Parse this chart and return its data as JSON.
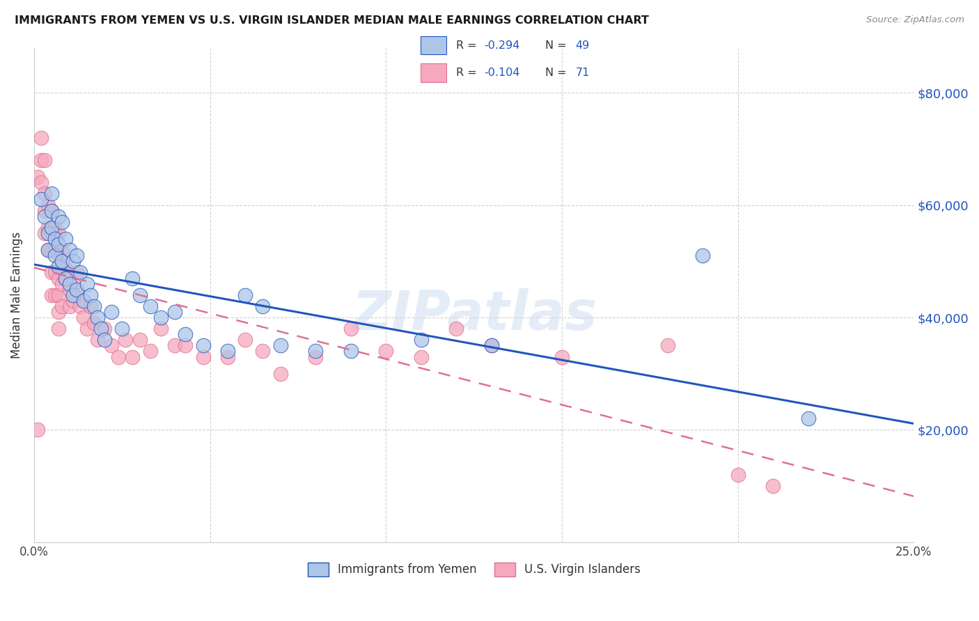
{
  "title": "IMMIGRANTS FROM YEMEN VS U.S. VIRGIN ISLANDER MEDIAN MALE EARNINGS CORRELATION CHART",
  "source": "Source: ZipAtlas.com",
  "ylabel": "Median Male Earnings",
  "xlim": [
    0.0,
    0.25
  ],
  "ylim": [
    0,
    88000
  ],
  "yticks": [
    0,
    20000,
    40000,
    60000,
    80000
  ],
  "ytick_labels": [
    "",
    "$20,000",
    "$40,000",
    "$60,000",
    "$80,000"
  ],
  "xticks": [
    0.0,
    0.05,
    0.1,
    0.15,
    0.2,
    0.25
  ],
  "xtick_labels": [
    "0.0%",
    "",
    "",
    "",
    "",
    "25.0%"
  ],
  "legend_R1": "-0.294",
  "legend_N1": "49",
  "legend_R2": "-0.104",
  "legend_N2": "71",
  "series1_color": "#adc6e8",
  "series2_color": "#f5a8be",
  "trend1_color": "#2255bb",
  "trend2_color": "#e07090",
  "watermark": "ZIPatlas",
  "blue_x": [
    0.002,
    0.003,
    0.004,
    0.004,
    0.005,
    0.005,
    0.005,
    0.006,
    0.006,
    0.007,
    0.007,
    0.007,
    0.008,
    0.008,
    0.009,
    0.009,
    0.01,
    0.01,
    0.011,
    0.011,
    0.012,
    0.012,
    0.013,
    0.014,
    0.015,
    0.016,
    0.017,
    0.018,
    0.019,
    0.02,
    0.022,
    0.025,
    0.028,
    0.03,
    0.033,
    0.036,
    0.04,
    0.043,
    0.048,
    0.055,
    0.06,
    0.065,
    0.07,
    0.08,
    0.09,
    0.11,
    0.13,
    0.19,
    0.22
  ],
  "blue_y": [
    61000,
    58000,
    55000,
    52000,
    62000,
    59000,
    56000,
    54000,
    51000,
    58000,
    53000,
    49000,
    57000,
    50000,
    54000,
    47000,
    52000,
    46000,
    50000,
    44000,
    51000,
    45000,
    48000,
    43000,
    46000,
    44000,
    42000,
    40000,
    38000,
    36000,
    41000,
    38000,
    47000,
    44000,
    42000,
    40000,
    41000,
    37000,
    35000,
    34000,
    44000,
    42000,
    35000,
    34000,
    34000,
    36000,
    35000,
    51000,
    22000
  ],
  "pink_x": [
    0.001,
    0.001,
    0.002,
    0.002,
    0.002,
    0.003,
    0.003,
    0.003,
    0.003,
    0.004,
    0.004,
    0.004,
    0.005,
    0.005,
    0.005,
    0.005,
    0.005,
    0.006,
    0.006,
    0.006,
    0.006,
    0.007,
    0.007,
    0.007,
    0.007,
    0.007,
    0.007,
    0.008,
    0.008,
    0.008,
    0.008,
    0.009,
    0.009,
    0.01,
    0.01,
    0.01,
    0.011,
    0.011,
    0.012,
    0.012,
    0.013,
    0.014,
    0.015,
    0.016,
    0.017,
    0.018,
    0.02,
    0.022,
    0.024,
    0.026,
    0.028,
    0.03,
    0.033,
    0.036,
    0.04,
    0.043,
    0.048,
    0.055,
    0.06,
    0.065,
    0.07,
    0.08,
    0.09,
    0.1,
    0.11,
    0.12,
    0.13,
    0.15,
    0.18,
    0.2,
    0.21
  ],
  "pink_y": [
    20000,
    65000,
    72000,
    68000,
    64000,
    62000,
    68000,
    59000,
    55000,
    60000,
    56000,
    52000,
    59000,
    55000,
    52000,
    48000,
    44000,
    56000,
    52000,
    48000,
    44000,
    55000,
    51000,
    47000,
    44000,
    41000,
    38000,
    52000,
    49000,
    46000,
    42000,
    50000,
    47000,
    48000,
    45000,
    42000,
    46000,
    43000,
    48000,
    44000,
    42000,
    40000,
    38000,
    42000,
    39000,
    36000,
    38000,
    35000,
    33000,
    36000,
    33000,
    36000,
    34000,
    38000,
    35000,
    35000,
    33000,
    33000,
    36000,
    34000,
    30000,
    33000,
    38000,
    34000,
    33000,
    38000,
    35000,
    33000,
    35000,
    12000,
    10000
  ]
}
